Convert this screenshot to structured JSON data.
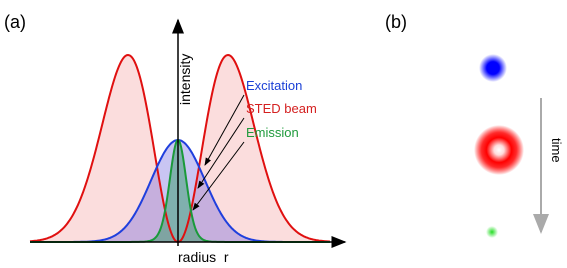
{
  "panels": {
    "a": {
      "label": "(a)",
      "y_axis_label": "intensity",
      "x_axis_label": "radius  r",
      "legend": [
        "Excitation",
        "STED beam",
        "Emission"
      ]
    },
    "b": {
      "label": "(b)",
      "arrow_label": "time"
    }
  }
}
